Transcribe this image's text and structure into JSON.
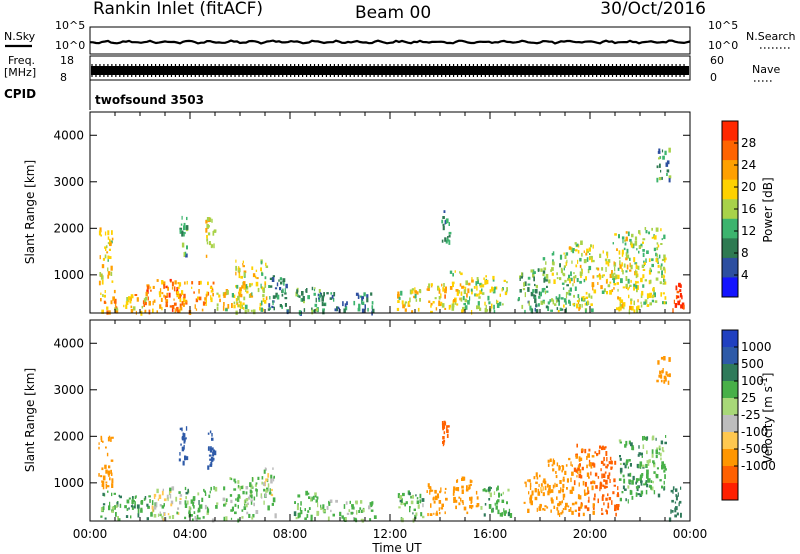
{
  "header": {
    "station": "Rankin Inlet (fitACF)",
    "beam": "Beam 00",
    "date": "30/Oct/2016"
  },
  "strips": {
    "nsky_label": "N.Sky",
    "nsky_ticks": [
      "10^5",
      "10^0"
    ],
    "nsearch_label": "N.Search",
    "nsearch_ticks": [
      "10^5",
      "10^0"
    ],
    "freq_label_line1": "Freq.",
    "freq_label_line2": "[MHz]",
    "freq_ticks": [
      "18",
      "8"
    ],
    "nave_label": "Nave",
    "nave_ticks": [
      "60",
      "0"
    ],
    "cpid_label": "CPID",
    "cpid_value": "twofsound 3503"
  },
  "colors": {
    "power": [
      "#1414ff",
      "#2d4fa0",
      "#2e7a52",
      "#3cb46e",
      "#a8d24a",
      "#ffd200",
      "#ffa000",
      "#ff6400",
      "#ff2800"
    ],
    "velocity": [
      "#2040c0",
      "#2e5aa8",
      "#2f7a5a",
      "#48b048",
      "#a8d878",
      "#bdbdbd",
      "#ffc850",
      "#ff9600",
      "#ff6000",
      "#ff2000"
    ]
  },
  "chart_data": [
    {
      "type": "heatmap",
      "title": "",
      "xlabel": "",
      "ylabel": "Slant Range [km]",
      "xlim": [
        "00:00",
        "24:00"
      ],
      "ylim": [
        180,
        4500
      ],
      "x_ticks": [
        "00:00",
        "04:00",
        "08:00",
        "12:00",
        "16:00",
        "20:00",
        "00:00"
      ],
      "y_ticks": [
        "1000",
        "2000",
        "3000",
        "4000"
      ],
      "colorbar": {
        "label": "Power [dB]",
        "ticks": [
          "4",
          "8",
          "12",
          "16",
          "20",
          "24",
          "28"
        ],
        "range": [
          0,
          30
        ]
      },
      "blobs": [
        {
          "t": 0.6,
          "dt": 0.55,
          "r0": 800,
          "r1": 2000,
          "v": 18
        },
        {
          "t": 0.7,
          "dt": 0.8,
          "r0": 180,
          "r1": 650,
          "v": 21
        },
        {
          "t": 1.8,
          "dt": 1.0,
          "r0": 180,
          "r1": 550,
          "v": 19
        },
        {
          "t": 2.8,
          "dt": 1.4,
          "r0": 180,
          "r1": 900,
          "v": 24
        },
        {
          "t": 3.7,
          "dt": 0.3,
          "r0": 1400,
          "r1": 2400,
          "v": 11
        },
        {
          "t": 4.2,
          "dt": 1.5,
          "r0": 180,
          "r1": 850,
          "v": 22
        },
        {
          "t": 4.8,
          "dt": 0.4,
          "r0": 1200,
          "r1": 2200,
          "v": 18
        },
        {
          "t": 5.6,
          "dt": 1.1,
          "r0": 180,
          "r1": 700,
          "v": 18
        },
        {
          "t": 6.4,
          "dt": 1.3,
          "r0": 200,
          "r1": 1300,
          "v": 17
        },
        {
          "t": 7.5,
          "dt": 0.8,
          "r0": 200,
          "r1": 1000,
          "v": 9
        },
        {
          "t": 8.7,
          "dt": 1.0,
          "r0": 180,
          "r1": 700,
          "v": 11
        },
        {
          "t": 10.2,
          "dt": 2.2,
          "r0": 180,
          "r1": 600,
          "v": 8
        },
        {
          "t": 12.7,
          "dt": 1.0,
          "r0": 180,
          "r1": 700,
          "v": 17
        },
        {
          "t": 13.8,
          "dt": 0.8,
          "r0": 180,
          "r1": 800,
          "v": 19
        },
        {
          "t": 14.2,
          "dt": 0.3,
          "r0": 1700,
          "r1": 2400,
          "v": 10
        },
        {
          "t": 14.8,
          "dt": 1.0,
          "r0": 200,
          "r1": 1100,
          "v": 17
        },
        {
          "t": 16.0,
          "dt": 1.4,
          "r0": 200,
          "r1": 950,
          "v": 15
        },
        {
          "t": 17.6,
          "dt": 1.0,
          "r0": 200,
          "r1": 1100,
          "v": 11
        },
        {
          "t": 18.6,
          "dt": 1.0,
          "r0": 200,
          "r1": 1500,
          "v": 13
        },
        {
          "t": 19.6,
          "dt": 1.0,
          "r0": 200,
          "r1": 1700,
          "v": 16
        },
        {
          "t": 20.5,
          "dt": 1.0,
          "r0": 600,
          "r1": 1500,
          "v": 18
        },
        {
          "t": 21.4,
          "dt": 1.0,
          "r0": 200,
          "r1": 1900,
          "v": 17
        },
        {
          "t": 22.4,
          "dt": 1.2,
          "r0": 300,
          "r1": 2000,
          "v": 15
        },
        {
          "t": 23.5,
          "dt": 0.5,
          "r0": 180,
          "r1": 800,
          "v": 28
        },
        {
          "t": 22.9,
          "dt": 0.5,
          "r0": 3000,
          "r1": 3700,
          "v": 10
        }
      ]
    },
    {
      "type": "heatmap",
      "title": "",
      "xlabel": "Time UT",
      "ylabel": "Slant Range [km]",
      "xlim": [
        "00:00",
        "24:00"
      ],
      "ylim": [
        180,
        4500
      ],
      "x_ticks": [
        "00:00",
        "04:00",
        "08:00",
        "12:00",
        "16:00",
        "20:00",
        "00:00"
      ],
      "y_ticks": [
        "1000",
        "2000",
        "3000",
        "4000"
      ],
      "colorbar": {
        "label": "Velocity [m s^-1]",
        "ticks": [
          "1000",
          "500",
          "100",
          "25",
          "-25",
          "-100",
          "-500",
          "-1000"
        ],
        "range": [
          -1200,
          1200
        ]
      },
      "blobs": [
        {
          "t": 0.6,
          "dt": 0.55,
          "r0": 900,
          "r1": 2000,
          "v": -300
        },
        {
          "t": 0.8,
          "dt": 0.8,
          "r0": 180,
          "r1": 800,
          "v": 60
        },
        {
          "t": 2.0,
          "dt": 1.3,
          "r0": 180,
          "r1": 700,
          "v": 80
        },
        {
          "t": 3.0,
          "dt": 1.2,
          "r0": 180,
          "r1": 900,
          "v": 0
        },
        {
          "t": 3.7,
          "dt": 0.3,
          "r0": 1400,
          "r1": 2200,
          "v": 700
        },
        {
          "t": 4.4,
          "dt": 1.3,
          "r0": 180,
          "r1": 900,
          "v": 50
        },
        {
          "t": 4.8,
          "dt": 0.3,
          "r0": 1300,
          "r1": 2100,
          "v": 600
        },
        {
          "t": 6.0,
          "dt": 1.4,
          "r0": 180,
          "r1": 1100,
          "v": 40
        },
        {
          "t": 7.1,
          "dt": 0.6,
          "r0": 300,
          "r1": 1300,
          "v": 0
        },
        {
          "t": 8.6,
          "dt": 1.0,
          "r0": 180,
          "r1": 800,
          "v": 60
        },
        {
          "t": 10.3,
          "dt": 2.2,
          "r0": 180,
          "r1": 600,
          "v": 40
        },
        {
          "t": 12.8,
          "dt": 1.0,
          "r0": 180,
          "r1": 800,
          "v": 50
        },
        {
          "t": 13.8,
          "dt": 0.8,
          "r0": 300,
          "r1": 1000,
          "v": -200
        },
        {
          "t": 14.2,
          "dt": 0.25,
          "r0": 1800,
          "r1": 2300,
          "v": -900
        },
        {
          "t": 15.0,
          "dt": 1.0,
          "r0": 300,
          "r1": 1100,
          "v": -300
        },
        {
          "t": 16.2,
          "dt": 1.2,
          "r0": 300,
          "r1": 900,
          "v": 60
        },
        {
          "t": 17.8,
          "dt": 1.0,
          "r0": 400,
          "r1": 1200,
          "v": -150
        },
        {
          "t": 18.8,
          "dt": 1.0,
          "r0": 300,
          "r1": 1500,
          "v": -250
        },
        {
          "t": 19.8,
          "dt": 0.9,
          "r0": 300,
          "r1": 1800,
          "v": -500
        },
        {
          "t": 20.7,
          "dt": 0.8,
          "r0": 300,
          "r1": 1800,
          "v": -700
        },
        {
          "t": 21.6,
          "dt": 0.9,
          "r0": 600,
          "r1": 1900,
          "v": 80
        },
        {
          "t": 22.5,
          "dt": 1.0,
          "r0": 700,
          "r1": 2000,
          "v": 60
        },
        {
          "t": 23.4,
          "dt": 0.5,
          "r0": 180,
          "r1": 900,
          "v": 150
        },
        {
          "t": 22.9,
          "dt": 0.5,
          "r0": 3100,
          "r1": 3700,
          "v": -150
        }
      ]
    }
  ]
}
